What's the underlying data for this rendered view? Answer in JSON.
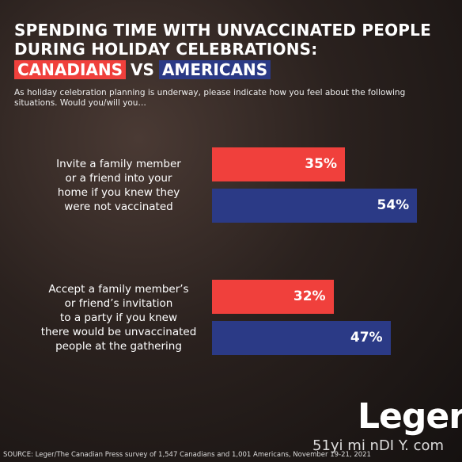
{
  "chart_data": {
    "type": "bar",
    "orientation": "horizontal",
    "title": "SPENDING TIME WITH UNVACCINATED PEOPLE\nDURING HOLIDAY CELEBRATIONS:",
    "title_joiner": "VS",
    "subtitle": "As holiday celebration planning is underway, please indicate how you feel about the following situations.  Would you/will you…",
    "categories": [
      "Invite a family member\nor a friend into your\nhome if you knew they\nwere not vaccinated",
      "Accept a family member’s\nor friend’s invitation\nto a party if you knew\nthere would be unvaccinated\npeople at the gathering"
    ],
    "series": [
      {
        "name": "CANADIANS",
        "color": "#f0403c",
        "values": [
          35,
          32
        ],
        "value_labels": [
          "35%",
          "32%"
        ]
      },
      {
        "name": "AMERICANS",
        "color": "#2b3a86",
        "values": [
          54,
          47
        ],
        "value_labels": [
          "54%",
          "47%"
        ]
      }
    ],
    "xlim": [
      0,
      100
    ],
    "source": "SOURCE: Leger/The Canadian Press survey of 1,547 Canadians and 1,001 Americans, November 19-21, 2021",
    "logo": "Leger",
    "watermark": "51yi mi nDI Y. com"
  }
}
